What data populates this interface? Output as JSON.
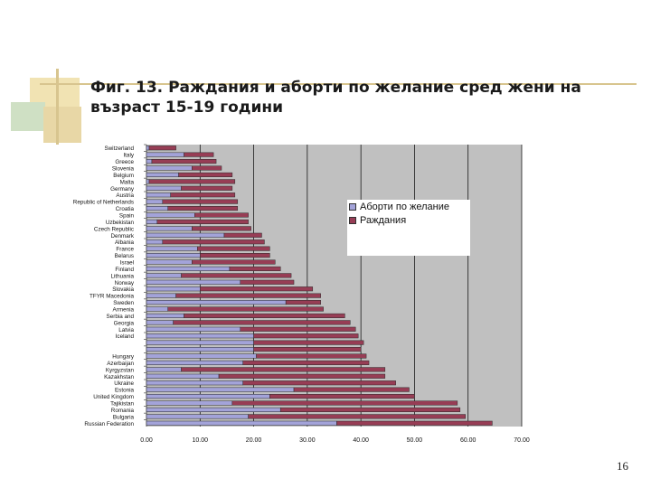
{
  "slide": {
    "title": "Фиг. 13. Раждания и аборти по желание сред жени на възраст 15-19 години",
    "page_number": "16"
  },
  "colors": {
    "abortions": "#a3a3d9",
    "births": "#973d55",
    "plot_bg": "#c0c0c0",
    "grid": "#000000"
  },
  "chart_data": {
    "type": "bar",
    "orientation": "horizontal",
    "stacked": true,
    "xlim": [
      0,
      70
    ],
    "x_ticks": [
      "0.00",
      "10.00",
      "20.00",
      "30.00",
      "40.00",
      "50.00",
      "60.00",
      "70.00"
    ],
    "grid": "vertical",
    "legend_position": "right",
    "categories": [
      "Switzerland",
      "Italy",
      "Greece",
      "Slovenia",
      "Belgium",
      "Malta",
      "Germany",
      "Austria",
      "Republic of Netherlands",
      "Croatia",
      "Spain",
      "Uzbekistan",
      "Czech Republic",
      "Denmark",
      "Albania",
      "France",
      "Belarus",
      "Israel",
      "Finland",
      "Lithuania",
      "Norway",
      "Slovakia",
      "TFYR Macedonia",
      "Sweden",
      "Armenia",
      "Serbia and",
      "Georgia",
      "Latvia",
      "Iceland",
      "",
      "",
      "Hungary",
      "Azerbaijan",
      "Kyrgyzstan",
      "Kazakhstan",
      "Ukraine",
      "Estonia",
      "United Kingdom",
      "Tajikistan",
      "Romania",
      "Bulgaria",
      "Russian Federation"
    ],
    "series": [
      {
        "name": "Аборти по желание",
        "values": [
          0.5,
          7.0,
          1.0,
          8.5,
          6.0,
          0.5,
          6.5,
          4.5,
          3.0,
          4.0,
          9.0,
          2.0,
          8.5,
          14.5,
          3.0,
          9.5,
          10.0,
          8.5,
          15.5,
          6.5,
          17.5,
          10.0,
          5.5,
          26.0,
          4.0,
          7.0,
          5.0,
          17.5,
          20.0,
          20.0,
          20.0,
          20.5,
          18.0,
          6.5,
          13.5,
          18.0,
          27.5,
          23.0,
          16.0,
          25.0,
          19.0,
          35.5
        ]
      },
      {
        "name": "Раждания",
        "values": [
          5.0,
          5.5,
          12.0,
          5.5,
          10.0,
          16.0,
          9.5,
          12.0,
          14.0,
          13.0,
          10.0,
          17.0,
          11.0,
          7.0,
          19.0,
          13.5,
          13.0,
          15.5,
          9.5,
          20.5,
          10.0,
          21.0,
          27.0,
          6.5,
          29.0,
          30.0,
          33.0,
          21.5,
          19.5,
          20.5,
          20.0,
          20.5,
          23.5,
          38.0,
          31.0,
          28.5,
          21.5,
          27.0,
          42.0,
          33.5,
          40.5,
          29.0
        ]
      }
    ]
  }
}
